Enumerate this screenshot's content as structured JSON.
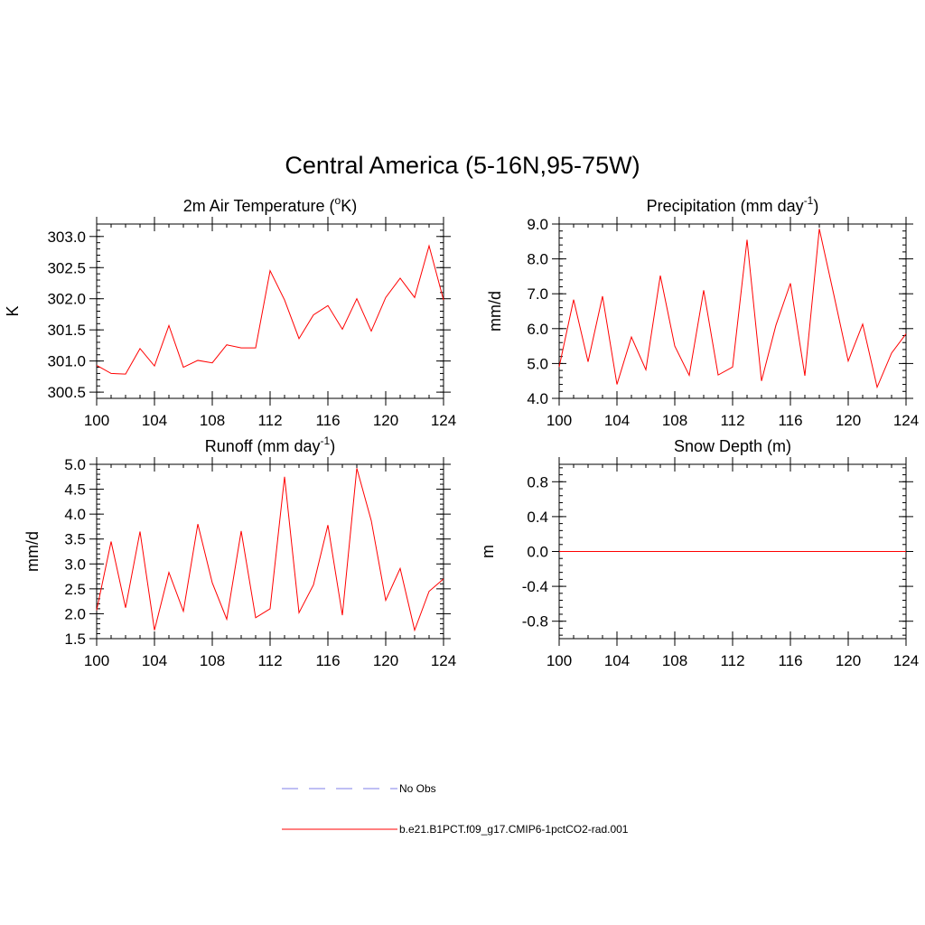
{
  "page": {
    "title": "Central America (5-16N,95-75W)"
  },
  "colors": {
    "model": "#ff0000",
    "obs": "#9999ee",
    "axis": "#000000"
  },
  "legend": {
    "obs_label": "No Obs",
    "model_label": "b.e21.B1PCT.f09_g17.CMIP6-1pctCO2-rad.001"
  },
  "chart_data": [
    {
      "type": "line",
      "title": "2m Air Temperature (oK)",
      "title_parts": {
        "pre": "2m Air Temperature (",
        "sup": "o",
        "post": "K)"
      },
      "ylabel": "K",
      "xlim": [
        100,
        124
      ],
      "ylim": [
        300.4,
        303.2
      ],
      "xticks": [
        100,
        104,
        108,
        112,
        116,
        120,
        124
      ],
      "yticks": [
        300.5,
        301.0,
        301.5,
        302.0,
        302.5,
        303.0
      ],
      "ytick_labels": [
        "300.5",
        "301.0",
        "301.5",
        "302.0",
        "302.5",
        "303.0"
      ],
      "x": [
        100,
        101,
        102,
        103,
        104,
        105,
        106,
        107,
        108,
        109,
        110,
        111,
        112,
        113,
        114,
        115,
        116,
        117,
        118,
        119,
        120,
        121,
        122,
        123,
        124
      ],
      "series": [
        {
          "values": [
            300.93,
            300.8,
            300.79,
            301.2,
            300.92,
            301.57,
            300.9,
            301.01,
            300.97,
            301.26,
            301.21,
            301.21,
            302.45,
            301.98,
            301.36,
            301.74,
            301.89,
            301.51,
            302.0,
            301.48,
            302.02,
            302.33,
            302.02,
            302.85,
            301.98
          ]
        }
      ]
    },
    {
      "type": "line",
      "title": "Precipitation (mm day-1)",
      "title_parts": {
        "pre": "Precipitation (mm day",
        "sup": "-1",
        "post": ")"
      },
      "ylabel": "mm/d",
      "xlim": [
        100,
        124
      ],
      "ylim": [
        4.0,
        9.0
      ],
      "xticks": [
        100,
        104,
        108,
        112,
        116,
        120,
        124
      ],
      "yticks": [
        4.0,
        5.0,
        6.0,
        7.0,
        8.0,
        9.0
      ],
      "ytick_labels": [
        "4.0",
        "5.0",
        "6.0",
        "7.0",
        "8.0",
        "9.0"
      ],
      "x": [
        100,
        101,
        102,
        103,
        104,
        105,
        106,
        107,
        108,
        109,
        110,
        111,
        112,
        113,
        114,
        115,
        116,
        117,
        118,
        119,
        120,
        121,
        122,
        123,
        124
      ],
      "series": [
        {
          "values": [
            4.9,
            6.83,
            5.05,
            6.93,
            4.4,
            5.76,
            4.82,
            7.52,
            5.5,
            4.66,
            7.1,
            4.67,
            4.9,
            8.55,
            4.5,
            6.1,
            7.3,
            4.65,
            8.86,
            6.98,
            5.07,
            6.13,
            4.32,
            5.3,
            5.85
          ]
        }
      ]
    },
    {
      "type": "line",
      "title": "Runoff (mm day-1)",
      "title_parts": {
        "pre": "Runoff (mm day",
        "sup": "-1",
        "post": ")"
      },
      "ylabel": "mm/d",
      "xlim": [
        100,
        124
      ],
      "ylim": [
        1.5,
        5.0
      ],
      "xticks": [
        100,
        104,
        108,
        112,
        116,
        120,
        124
      ],
      "yticks": [
        1.5,
        2.0,
        2.5,
        3.0,
        3.5,
        4.0,
        4.5,
        5.0
      ],
      "ytick_labels": [
        "1.5",
        "2.0",
        "2.5",
        "3.0",
        "3.5",
        "4.0",
        "4.5",
        "5.0"
      ],
      "x": [
        100,
        101,
        102,
        103,
        104,
        105,
        106,
        107,
        108,
        109,
        110,
        111,
        112,
        113,
        114,
        115,
        116,
        117,
        118,
        119,
        120,
        121,
        122,
        123,
        124
      ],
      "series": [
        {
          "values": [
            2.07,
            3.45,
            2.12,
            3.65,
            1.67,
            2.83,
            2.05,
            3.8,
            2.62,
            1.89,
            3.66,
            1.92,
            2.1,
            4.75,
            2.02,
            2.58,
            3.78,
            1.97,
            4.92,
            3.87,
            2.27,
            2.91,
            1.67,
            2.45,
            2.7
          ]
        }
      ]
    },
    {
      "type": "line",
      "title": "Snow Depth (m)",
      "title_parts": {
        "pre": "Snow Depth (m)",
        "sup": "",
        "post": ""
      },
      "ylabel": "m",
      "xlim": [
        100,
        124
      ],
      "ylim": [
        -1.0,
        1.0
      ],
      "xticks": [
        100,
        104,
        108,
        112,
        116,
        120,
        124
      ],
      "yticks": [
        -0.8,
        -0.4,
        0.0,
        0.4,
        0.8
      ],
      "ytick_labels": [
        "-0.8",
        "-0.4",
        "0.0",
        "0.4",
        "0.8"
      ],
      "x": [
        100,
        124
      ],
      "series": [
        {
          "values": [
            0.0,
            0.0
          ]
        }
      ]
    }
  ]
}
